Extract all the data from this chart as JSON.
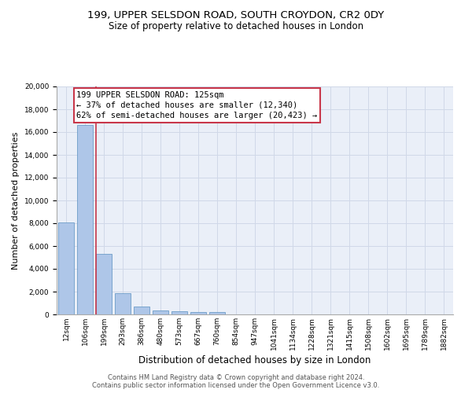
{
  "title": "199, UPPER SELSDON ROAD, SOUTH CROYDON, CR2 0DY",
  "subtitle": "Size of property relative to detached houses in London",
  "xlabel": "Distribution of detached houses by size in London",
  "ylabel": "Number of detached properties",
  "categories": [
    "12sqm",
    "106sqm",
    "199sqm",
    "293sqm",
    "386sqm",
    "480sqm",
    "573sqm",
    "667sqm",
    "760sqm",
    "854sqm",
    "947sqm",
    "1041sqm",
    "1134sqm",
    "1228sqm",
    "1321sqm",
    "1415sqm",
    "1508sqm",
    "1602sqm",
    "1695sqm",
    "1789sqm",
    "1882sqm"
  ],
  "values": [
    8100,
    16600,
    5300,
    1850,
    680,
    360,
    280,
    230,
    200,
    0,
    0,
    0,
    0,
    0,
    0,
    0,
    0,
    0,
    0,
    0,
    0
  ],
  "bar_color": "#aec6e8",
  "bar_edge_color": "#5a90c0",
  "highlight_bar_index": 2,
  "highlight_color": "#c8374a",
  "annotation_text": "199 UPPER SELSDON ROAD: 125sqm\n← 37% of detached houses are smaller (12,340)\n62% of semi-detached houses are larger (20,423) →",
  "annotation_box_color": "#c8374a",
  "ylim": [
    0,
    20000
  ],
  "yticks": [
    0,
    2000,
    4000,
    6000,
    8000,
    10000,
    12000,
    14000,
    16000,
    18000,
    20000
  ],
  "grid_color": "#d0d8e8",
  "background_color": "#eaeff8",
  "footer_text": "Contains HM Land Registry data © Crown copyright and database right 2024.\nContains public sector information licensed under the Open Government Licence v3.0.",
  "title_fontsize": 9.5,
  "subtitle_fontsize": 8.5,
  "axis_label_fontsize": 8,
  "tick_fontsize": 6.5,
  "annotation_fontsize": 7.5,
  "footer_fontsize": 6.0
}
